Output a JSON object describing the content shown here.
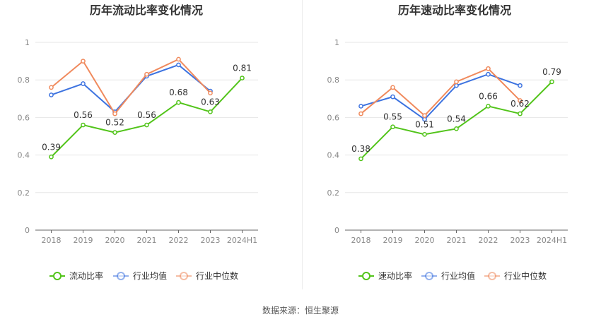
{
  "footer": {
    "source_label": "数据来源：",
    "source_name": "恒生聚源"
  },
  "chart_data": [
    {
      "type": "line",
      "title": "历年流动比率变化情况",
      "categories": [
        "2018",
        "2019",
        "2020",
        "2021",
        "2022",
        "2023",
        "2024H1"
      ],
      "ylim": [
        0,
        1
      ],
      "yticks": [
        "0",
        "0.2",
        "0.4",
        "0.6",
        "0.8",
        "1"
      ],
      "grid": true,
      "legend_position": "bottom",
      "series": [
        {
          "name": "流动比率",
          "color": "#52c41a",
          "values": [
            0.39,
            0.56,
            0.52,
            0.56,
            0.68,
            0.63,
            0.81
          ],
          "labels": [
            "0.39",
            "0.56",
            "0.52",
            "0.56",
            "0.68",
            "0.63",
            "0.81"
          ]
        },
        {
          "name": "行业均值",
          "color": "#3d73e0",
          "values": [
            0.72,
            0.78,
            0.63,
            0.82,
            0.88,
            0.74,
            null
          ]
        },
        {
          "name": "行业中位数",
          "color": "#f08a5d",
          "values": [
            0.76,
            0.9,
            0.62,
            0.83,
            0.91,
            0.73,
            null
          ]
        }
      ]
    },
    {
      "type": "line",
      "title": "历年速动比率变化情况",
      "categories": [
        "2018",
        "2019",
        "2020",
        "2021",
        "2022",
        "2023",
        "2024H1"
      ],
      "ylim": [
        0,
        1
      ],
      "yticks": [
        "0",
        "0.2",
        "0.4",
        "0.6",
        "0.8",
        "1"
      ],
      "grid": true,
      "legend_position": "bottom",
      "series": [
        {
          "name": "速动比率",
          "color": "#52c41a",
          "values": [
            0.38,
            0.55,
            0.51,
            0.54,
            0.66,
            0.62,
            0.79
          ],
          "labels": [
            "0.38",
            "0.55",
            "0.51",
            "0.54",
            "0.66",
            "0.62",
            "0.79"
          ]
        },
        {
          "name": "行业均值",
          "color": "#3d73e0",
          "values": [
            0.66,
            0.71,
            0.59,
            0.77,
            0.83,
            0.77,
            null
          ]
        },
        {
          "name": "行业中位数",
          "color": "#f08a5d",
          "values": [
            0.62,
            0.76,
            0.61,
            0.79,
            0.86,
            0.69,
            null
          ]
        }
      ]
    }
  ]
}
